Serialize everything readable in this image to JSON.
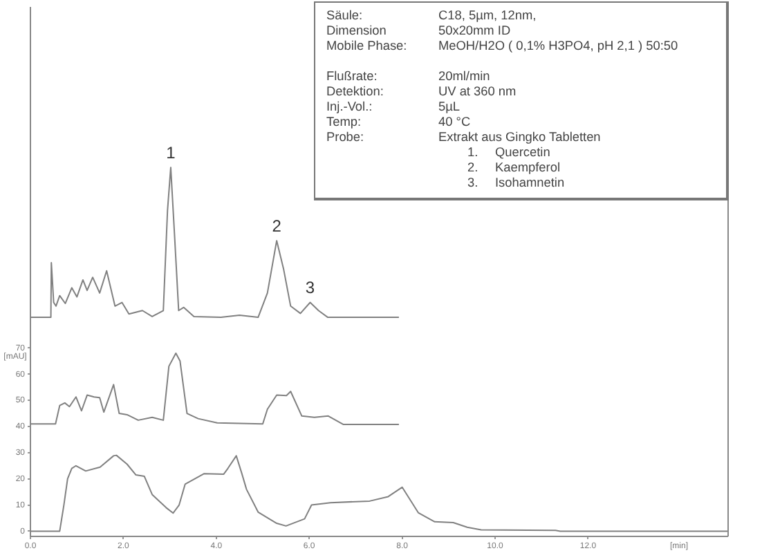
{
  "chart_data": {
    "type": "line",
    "xlabel": "[min]",
    "ylabel": "[mAU]",
    "xlim": [
      0,
      15
    ],
    "ylim": [
      -2,
      200
    ],
    "xticks": [
      {
        "value": 0,
        "label": "0.0"
      },
      {
        "value": 2,
        "label": "2.0"
      },
      {
        "value": 4,
        "label": "4.0"
      },
      {
        "value": 6,
        "label": "6.0"
      },
      {
        "value": 8,
        "label": "8.0"
      },
      {
        "value": 10,
        "label": "10.0"
      },
      {
        "value": 12,
        "label": "12.0"
      }
    ],
    "yticks": [
      0,
      10,
      20,
      30,
      40,
      50,
      60,
      70
    ],
    "grid": false,
    "legend": false,
    "marker": "none",
    "line_style": "solid",
    "series": [
      {
        "color": "#808080",
        "x": [
          0,
          0.44,
          0.45,
          0.5,
          0.55,
          0.63,
          0.75,
          0.89,
          1.0,
          1.13,
          1.22,
          1.34,
          1.49,
          1.64,
          1.82,
          1.97,
          2.12,
          2.41,
          2.62,
          2.86,
          2.95,
          3.02,
          3.1,
          3.19,
          3.3,
          3.52,
          4.1,
          4.5,
          4.9,
          5.1,
          5.3,
          5.45,
          5.6,
          5.81,
          6.02,
          6.2,
          6.4,
          7.93
        ],
        "values": [
          81.7,
          81.7,
          102.6,
          87.4,
          86,
          90,
          87,
          93,
          89.5,
          96,
          92,
          97,
          91,
          99.5,
          86,
          87.4,
          83,
          84.3,
          82,
          84.3,
          122.5,
          139,
          113.6,
          84.3,
          85.5,
          82,
          81.7,
          82.5,
          81.7,
          91,
          111,
          100,
          86,
          83.2,
          87.4,
          84.3,
          81.7,
          81.7
        ]
      },
      {
        "color": "#808080",
        "x": [
          0,
          0.54,
          0.63,
          0.74,
          0.84,
          0.98,
          1.1,
          1.22,
          1.37,
          1.49,
          1.58,
          1.79,
          1.91,
          2.08,
          2.32,
          2.62,
          2.86,
          2.98,
          3.13,
          3.22,
          3.37,
          3.61,
          4.02,
          4.5,
          5.0,
          5.1,
          5.3,
          5.51,
          5.6,
          5.84,
          6.11,
          6.41,
          6.73,
          7.93
        ],
        "values": [
          41,
          41,
          48,
          49,
          47.6,
          51.3,
          46,
          52,
          51.3,
          51,
          45.5,
          56,
          45,
          44.5,
          42.4,
          43.5,
          42.4,
          63,
          68,
          65,
          45,
          43,
          41.4,
          41.2,
          41,
          46.6,
          52,
          51.8,
          53.4,
          44,
          43.5,
          44,
          40.8,
          40.8
        ]
      },
      {
        "color": "#808080",
        "x": [
          0,
          0.63,
          0.72,
          0.8,
          0.89,
          0.98,
          1.19,
          1.5,
          1.79,
          1.85,
          2.08,
          2.27,
          2.45,
          2.62,
          2.92,
          3.07,
          3.2,
          3.33,
          3.74,
          4.16,
          4.25,
          4.43,
          4.55,
          4.65,
          4.9,
          5.3,
          5.5,
          5.9,
          6.05,
          6.46,
          7.3,
          7.7,
          8.0,
          8.35,
          8.7,
          9.1,
          9.4,
          9.7,
          11.3,
          11.4,
          15
        ],
        "values": [
          0,
          0,
          10,
          20,
          24,
          25,
          23,
          24.5,
          28.8,
          29,
          25.6,
          21.5,
          21,
          14,
          9,
          6.9,
          10,
          18,
          22,
          21.8,
          24,
          28.8,
          22,
          16,
          7.3,
          3,
          2,
          4.7,
          10,
          10.9,
          11.5,
          13.2,
          16.8,
          7,
          3.6,
          3.3,
          1.5,
          0.5,
          0.3,
          0,
          0
        ]
      }
    ],
    "annotations": [
      {
        "text": "1",
        "x": 3.02,
        "y": 139
      },
      {
        "text": "2",
        "x": 5.3,
        "y": 111
      },
      {
        "text": "3",
        "x": 6.02,
        "y": 87.4
      },
      "Säule:",
      "C18, 5µm, 12nm,",
      "Dimension",
      "50x20mm ID",
      "Mobile Phase:",
      "MeOH/H2O ( 0,1% H3PO4, pH 2,1 ) 50:50",
      "Flußrate:",
      "20ml/min",
      "Detektion:",
      "UV at 360 nm",
      "Inj.-Vol.:",
      "5µL",
      "Temp:",
      "40 °C",
      "Probe:",
      "Extrakt aus Gingko Tabletten",
      "1.",
      "Quercetin",
      "2.",
      "Kaempferol",
      "3.",
      "Isohamnetin"
    ]
  }
}
